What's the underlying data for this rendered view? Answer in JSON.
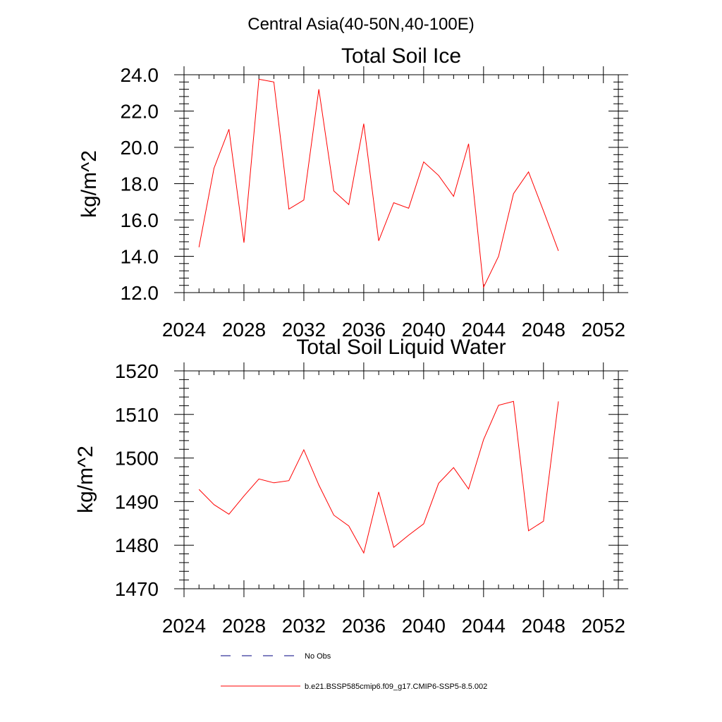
{
  "figure": {
    "title": "Central Asia(40-50N,40-100E)"
  },
  "chart_data": [
    {
      "type": "line",
      "title": "Total Soil Ice",
      "xlabel": "",
      "ylabel": "kg/m^2",
      "xlim": [
        2024,
        2053
      ],
      "ylim": [
        12.0,
        24.0
      ],
      "xticks": [
        "2024",
        "2028",
        "2032",
        "2036",
        "2040",
        "2044",
        "2048",
        "2052"
      ],
      "yticks": [
        "12.0",
        "14.0",
        "16.0",
        "18.0",
        "20.0",
        "22.0",
        "24.0"
      ],
      "grid": false,
      "series": [
        {
          "name": "b.e21.BSSP585cmip6.f09_g17.CMIP6-SSP5-8.5.002",
          "color": "#ff0000",
          "x": [
            2025,
            2026,
            2027,
            2028,
            2029,
            2030,
            2031,
            2032,
            2033,
            2034,
            2035,
            2036,
            2037,
            2038,
            2039,
            2040,
            2041,
            2042,
            2043,
            2044,
            2045,
            2046,
            2047,
            2048,
            2049
          ],
          "values": [
            14.5,
            18.85,
            21.0,
            14.75,
            23.75,
            23.6,
            16.6,
            17.1,
            23.2,
            17.6,
            16.85,
            21.3,
            14.85,
            16.95,
            16.65,
            19.2,
            18.45,
            17.3,
            20.2,
            12.3,
            14.0,
            17.45,
            18.65,
            16.5,
            14.3
          ]
        }
      ]
    },
    {
      "type": "line",
      "title": "Total Soil Liquid Water",
      "xlabel": "",
      "ylabel": "kg/m^2",
      "xlim": [
        2024,
        2053
      ],
      "ylim": [
        1470,
        1520
      ],
      "xticks": [
        "2024",
        "2028",
        "2032",
        "2036",
        "2040",
        "2044",
        "2048",
        "2052"
      ],
      "yticks": [
        "1470",
        "1480",
        "1490",
        "1500",
        "1510",
        "1520"
      ],
      "grid": false,
      "series": [
        {
          "name": "b.e21.BSSP585cmip6.f09_g17.CMIP6-SSP5-8.5.002",
          "color": "#ff0000",
          "x": [
            2025,
            2026,
            2027,
            2028,
            2029,
            2030,
            2031,
            2032,
            2033,
            2034,
            2035,
            2036,
            2037,
            2038,
            2039,
            2040,
            2041,
            2042,
            2043,
            2044,
            2045,
            2046,
            2047,
            2048,
            2049
          ],
          "values": [
            1492.8,
            1489.3,
            1487.1,
            1491.3,
            1495.2,
            1494.3,
            1494.8,
            1501.9,
            1493.8,
            1486.9,
            1484.4,
            1478.2,
            1492.2,
            1479.5,
            1482.3,
            1484.9,
            1494.2,
            1497.8,
            1492.9,
            1504.2,
            1512.1,
            1513.0,
            1483.3,
            1485.5,
            1513.0
          ]
        }
      ]
    }
  ],
  "legend": {
    "entries": [
      {
        "label": "No Obs",
        "color": "#000080",
        "style": "dashed"
      },
      {
        "label": "b.e21.BSSP585cmip6.f09_g17.CMIP6-SSP5-8.5.002",
        "color": "#ff0000",
        "style": "solid"
      }
    ]
  }
}
